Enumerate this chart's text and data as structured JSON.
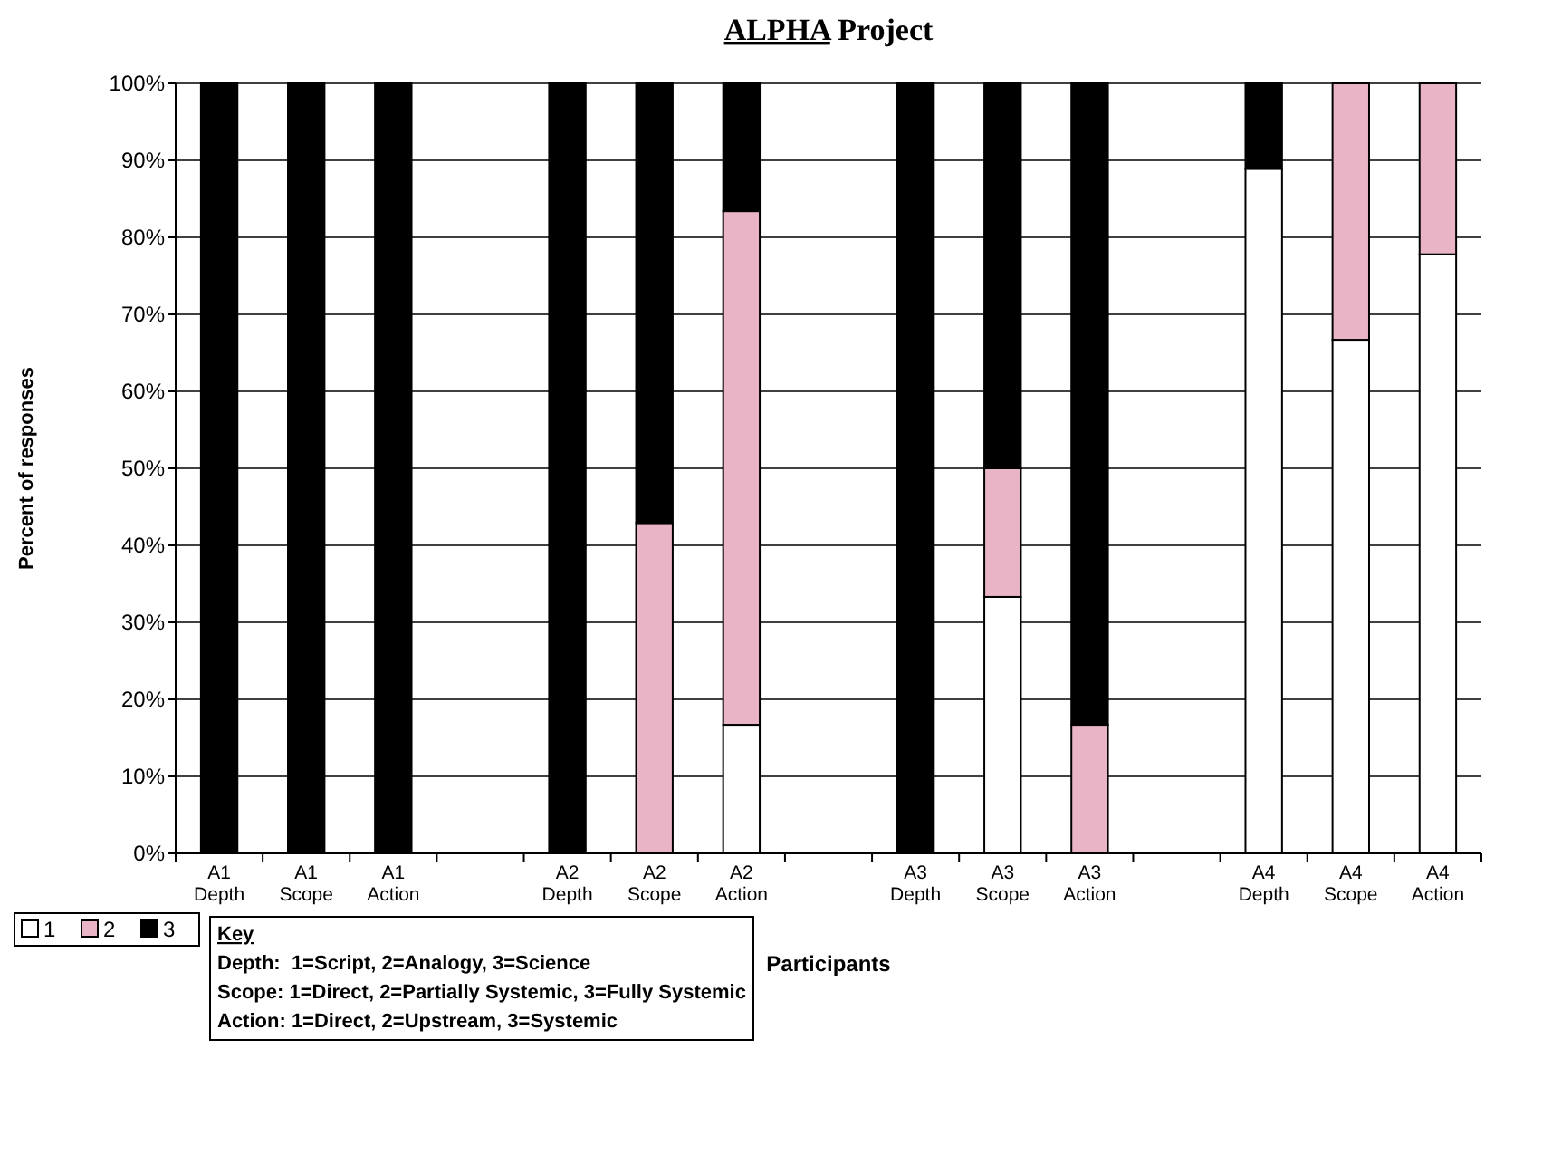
{
  "chart_data": {
    "type": "bar",
    "title": "ALPHA Project",
    "xlabel": "Participants",
    "ylabel": "Percent of responses",
    "categories": [
      "A1 Depth",
      "A1 Scope",
      "A1 Action",
      null,
      "A2 Depth",
      "A2 Scope",
      "A2 Action",
      null,
      "A3 Depth",
      "A3 Scope",
      "A3 Action",
      null,
      "A4 Depth",
      "A4 Scope",
      "A4 Action"
    ],
    "stacked": true,
    "series": [
      {
        "name": "1",
        "color": "#ffffff",
        "values": [
          0,
          0,
          0,
          null,
          0,
          0,
          16.7,
          null,
          0,
          33.3,
          0,
          null,
          88.9,
          66.7,
          77.8
        ]
      },
      {
        "name": "2",
        "color": "#e8b4c6",
        "values": [
          0,
          0,
          0,
          null,
          0,
          42.9,
          66.7,
          null,
          0,
          16.7,
          16.7,
          null,
          0,
          33.3,
          22.2
        ]
      },
      {
        "name": "3",
        "color": "#000000",
        "values": [
          100,
          100,
          100,
          null,
          100,
          57.1,
          16.6,
          null,
          100,
          50,
          83.3,
          null,
          11.1,
          0,
          0
        ]
      }
    ],
    "ylim": [
      0,
      100
    ],
    "yticks": [
      {
        "value": 0,
        "label": "0%"
      },
      {
        "value": 10,
        "label": "10%"
      },
      {
        "value": 20,
        "label": "20%"
      },
      {
        "value": 30,
        "label": "30%"
      },
      {
        "value": 40,
        "label": "40%"
      },
      {
        "value": 50,
        "label": "50%"
      },
      {
        "value": 60,
        "label": "60%"
      },
      {
        "value": 70,
        "label": "70%"
      },
      {
        "value": 80,
        "label": "80%"
      },
      {
        "value": 90,
        "label": "90%"
      },
      {
        "value": 100,
        "label": "100%"
      }
    ],
    "grid": "y",
    "legend": "bottom left",
    "annotations": [
      "Key",
      "Depth:  1=Script, 2=Analogy, 3=Science",
      "Scope: 1=Direct, 2=Partially Systemic, 3=Fully Systemic",
      "Action: 1=Direct, 2=Upstream, 3=Systemic"
    ]
  }
}
